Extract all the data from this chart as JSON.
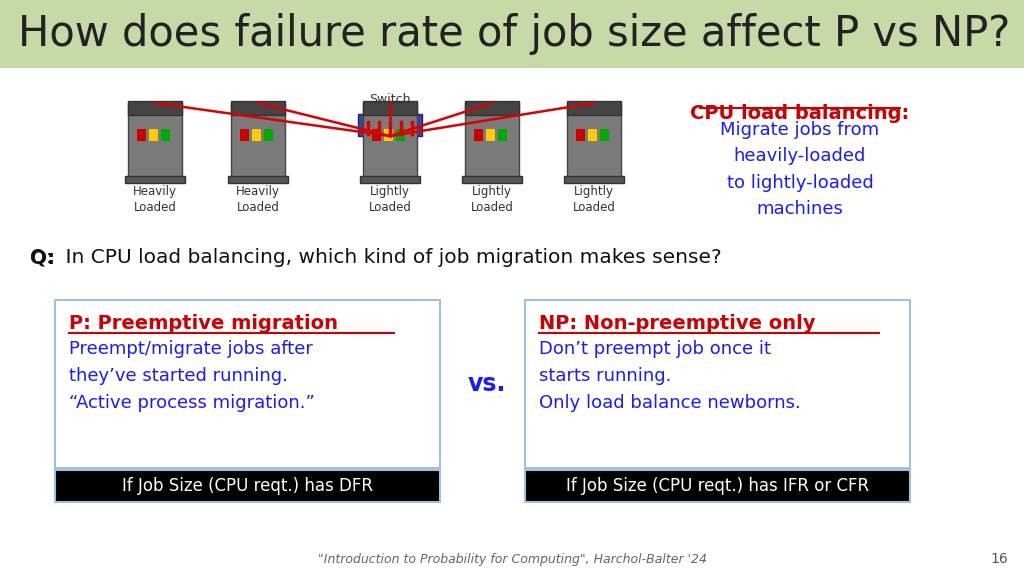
{
  "title": "How does failure rate of job size affect P vs NP?",
  "title_bg": "#c8d9a8",
  "slide_bg": "#ffffff",
  "switch_label": "Switch",
  "server_labels": [
    "Heavily\nLoaded",
    "Heavily\nLoaded",
    "Lightly\nLoaded",
    "Lightly\nLoaded",
    "Lightly\nLoaded"
  ],
  "cpu_title": "CPU load balancing:",
  "cpu_title_color": "#cc0000",
  "cpu_body": "Migrate jobs from\nheavily-loaded\nto lightly-loaded\nmachines",
  "cpu_body_color": "#1a1aff",
  "question": "Q:  In CPU load balancing, which kind of job migration makes sense?",
  "p_title": "P: Preemptive migration",
  "p_body": "Preempt/migrate jobs after\nthey’ve started running.\n“Active process migration.”",
  "p_banner": "If Job Size (CPU reqt.) has DFR",
  "np_title": "NP: Non-preemptive only",
  "np_body": "Don’t preempt job once it\nstarts running.\nOnly load balance newborns.",
  "np_banner": "If Job Size (CPU reqt.) has IFR or CFR",
  "vs_text": "vs.",
  "box_border_color": "#a0c0e0",
  "red_color": "#cc0000",
  "blue_color": "#1a1aff",
  "banner_bg": "#000000",
  "banner_fg": "#ffffff",
  "footer": "\"Introduction to Probability for Computing\", Harchol-Balter '24",
  "page_num": "16"
}
